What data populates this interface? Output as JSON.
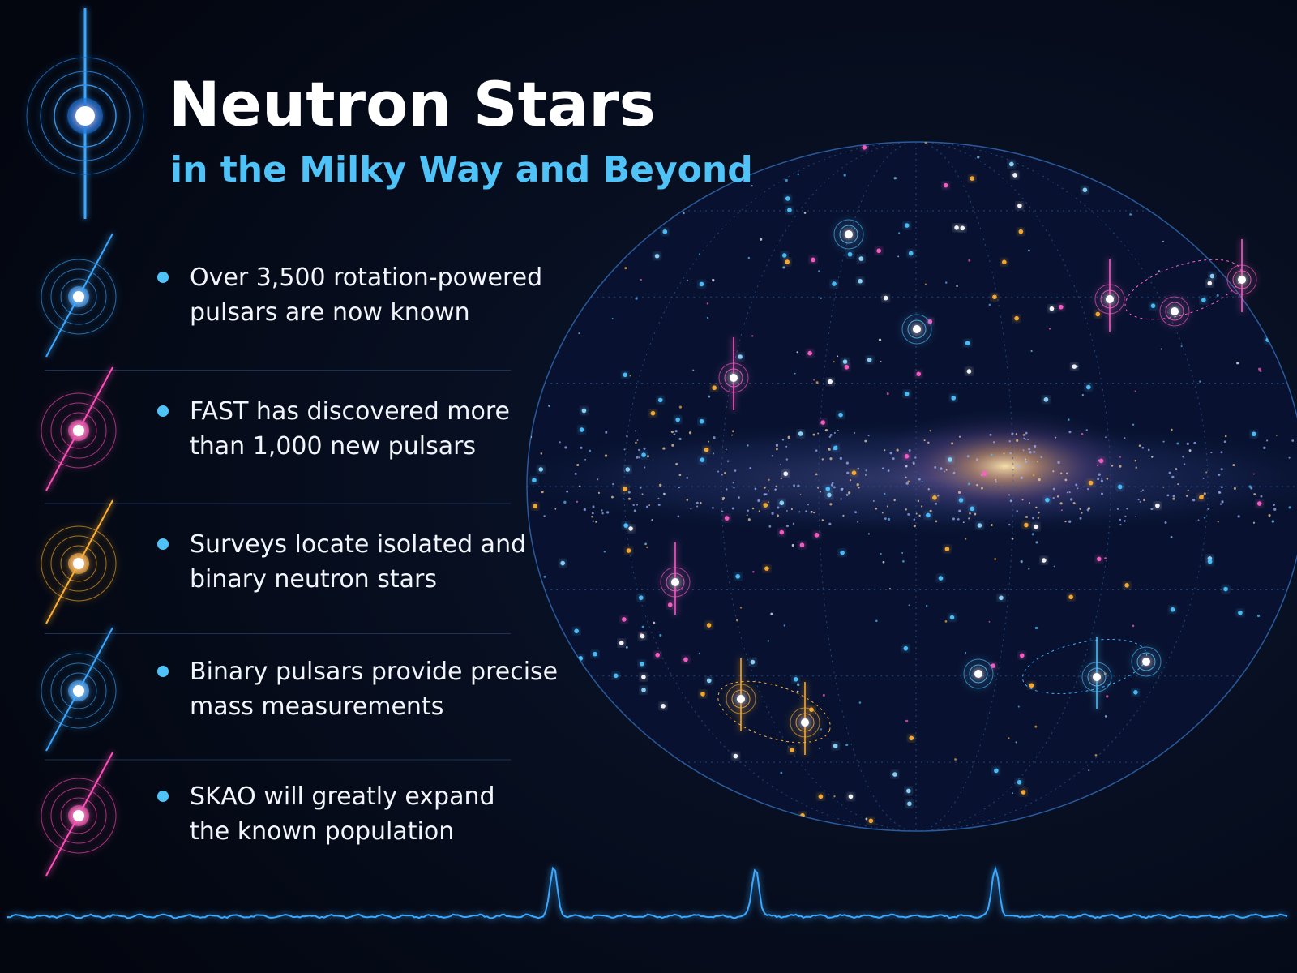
{
  "header": {
    "title": "Neutron Stars",
    "subtitle": "in the Milky Way and Beyond"
  },
  "bullets": [
    {
      "lines": [
        "Over 3,500 rotation-powered",
        "pulsars are now known"
      ]
    },
    {
      "lines": [
        "FAST has discovered more",
        "than 1,000 new pulsars"
      ]
    },
    {
      "lines": [
        "Surveys locate isolated and",
        "binary neutron stars"
      ]
    },
    {
      "lines": [
        "Binary pulsars provide precise",
        "mass measurements"
      ]
    },
    {
      "lines": [
        "SKAO will greatly expand",
        "the known population"
      ]
    }
  ]
}
